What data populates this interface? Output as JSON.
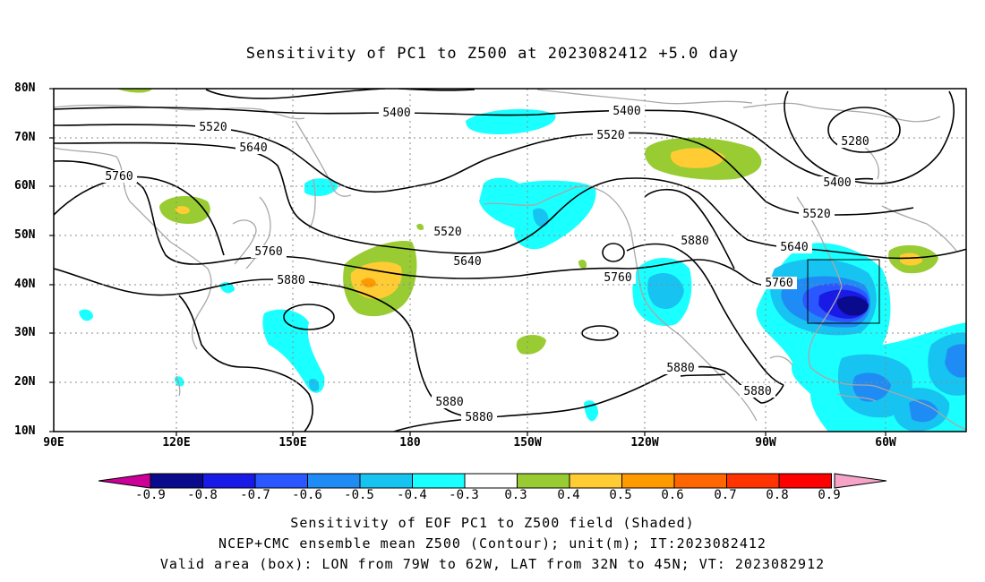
{
  "title": "Sensitivity of PC1 to Z500 at 2023082412 +5.0 day",
  "lat_labels": [
    "80N",
    "70N",
    "60N",
    "50N",
    "40N",
    "30N",
    "20N",
    "10N"
  ],
  "lon_labels": [
    "90E",
    "120E",
    "150E",
    "180",
    "150W",
    "120W",
    "90W",
    "60W"
  ],
  "contour_labels": [
    "5280",
    "5400",
    "5400",
    "5400",
    "5520",
    "5520",
    "5520",
    "5520",
    "5640",
    "5640",
    "5640",
    "5760",
    "5760",
    "5760",
    "5760",
    "5880",
    "5880",
    "5880",
    "5880",
    "5880",
    "5880"
  ],
  "colorbar": {
    "labels": [
      "-0.9",
      "-0.8",
      "-0.7",
      "-0.6",
      "-0.5",
      "-0.4",
      "-0.3",
      "0.3",
      "0.4",
      "0.5",
      "0.6",
      "0.7",
      "0.8",
      "0.9"
    ],
    "colors": [
      "#0a0a8c",
      "#1a1ae6",
      "#2a57ff",
      "#1f8cf5",
      "#17c3f0",
      "#1affff",
      "#ffffff",
      "#99cc33",
      "#ffcc33",
      "#ff9900",
      "#ff6600",
      "#ff3300",
      "#ff0000"
    ],
    "left_arrow_color": "#cc0099",
    "right_arrow_color": "#f5a3c7"
  },
  "footer": {
    "line1": "Sensitivity of EOF PC1 to Z500 field (Shaded)",
    "line2": "NCEP+CMC ensemble mean Z500 (Contour); unit(m); IT:2023082412",
    "line3": "Valid area (box): LON from 79W to 62W, LAT from 32N to 45N; VT: 2023082912"
  }
}
